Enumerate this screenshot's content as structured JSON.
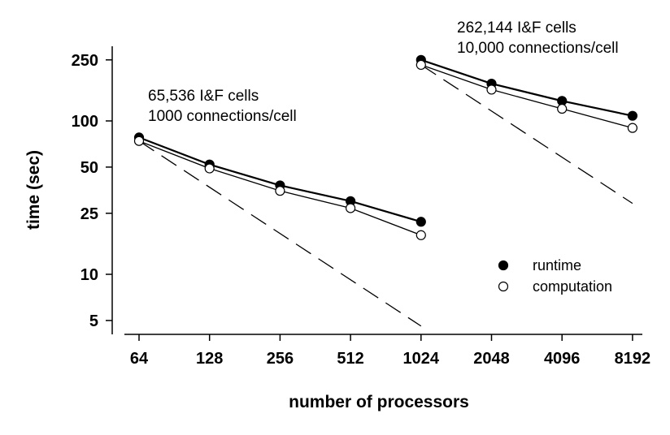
{
  "chart_data": {
    "type": "line",
    "xlabel": "number of processors",
    "ylabel": "time (sec)",
    "x_scale": "log2",
    "y_scale": "log",
    "x_ticks": [
      64,
      128,
      256,
      512,
      1024,
      2048,
      4096,
      8192
    ],
    "y_ticks": [
      5,
      10,
      25,
      50,
      100,
      250
    ],
    "ylim": [
      4,
      320
    ],
    "legend_position": "lower-right",
    "legend": [
      {
        "name": "runtime",
        "marker": "filled-circle"
      },
      {
        "name": "computation",
        "marker": "open-circle"
      }
    ],
    "groups": [
      {
        "annotation_lines": [
          "65,536 I&F cells",
          "1000 connections/cell"
        ],
        "x": [
          64,
          128,
          256,
          512,
          1024
        ],
        "runtime": [
          78,
          52,
          38,
          30,
          22
        ],
        "computation": [
          74,
          49,
          35,
          27,
          18
        ],
        "ideal_line": {
          "x": [
            64,
            1024
          ],
          "y": [
            74,
            4.6
          ]
        }
      },
      {
        "annotation_lines": [
          "262,144 I&F cells",
          "10,000 connections/cell"
        ],
        "x": [
          1024,
          2048,
          4096,
          8192
        ],
        "runtime": [
          250,
          175,
          135,
          108
        ],
        "computation": [
          232,
          160,
          120,
          90
        ],
        "ideal_line": {
          "x": [
            1024,
            8192
          ],
          "y": [
            232,
            29
          ]
        }
      }
    ],
    "colors": {
      "line": "#000000",
      "open_fill": "#ffffff"
    }
  }
}
